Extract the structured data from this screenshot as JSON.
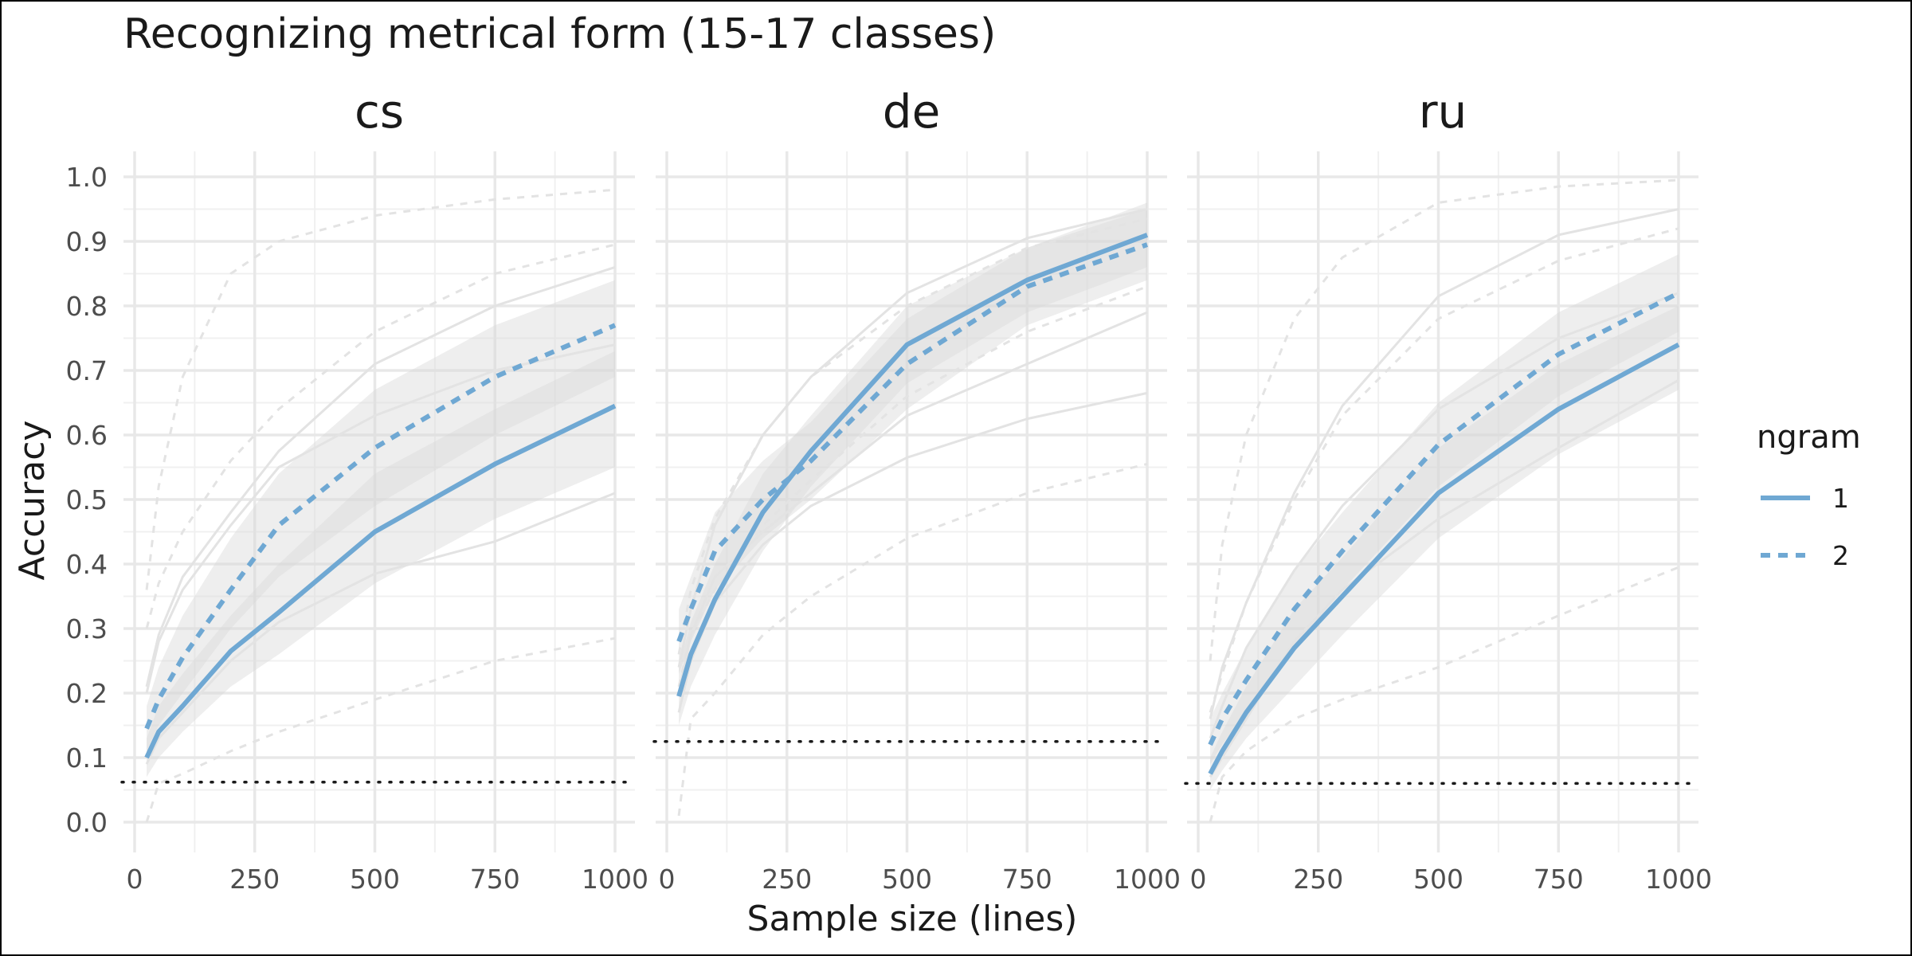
{
  "chart_data": {
    "type": "line",
    "title": "Recognizing metrical form (15-17 classes)",
    "xlabel": "Sample size (lines)",
    "ylabel": "Accuracy",
    "xlim": [
      0,
      1000
    ],
    "ylim": [
      0,
      1
    ],
    "x_ticks": [
      "0",
      "250",
      "500",
      "750",
      "1000"
    ],
    "y_ticks": [
      "0.0",
      "0.1",
      "0.2",
      "0.3",
      "0.4",
      "0.5",
      "0.6",
      "0.7",
      "0.8",
      "0.9",
      "1.0"
    ],
    "grid": true,
    "colors": {
      "highlight": "#6fa8d3",
      "background_lines": "#e3e3e3",
      "ribbon": "#ebebeb",
      "baseline": "#1a1a1a"
    },
    "legend": {
      "title": "ngram",
      "position": "right",
      "entries": [
        {
          "label": "1",
          "style": "solid"
        },
        {
          "label": "2",
          "style": "dashed"
        }
      ]
    },
    "x": [
      25,
      50,
      100,
      200,
      300,
      500,
      750,
      1000
    ],
    "panels": [
      {
        "name": "cs",
        "chance_level": 0.062,
        "series": [
          {
            "ngram": "1",
            "values": [
              0.1,
              0.14,
              0.18,
              0.265,
              0.325,
              0.45,
              0.555,
              0.645
            ]
          },
          {
            "ngram": "2",
            "values": [
              0.145,
              0.19,
              0.255,
              0.36,
              0.46,
              0.58,
              0.69,
              0.77
            ]
          }
        ],
        "ribbons": [
          {
            "ngram": "1",
            "lower": [
              0.07,
              0.1,
              0.14,
              0.21,
              0.26,
              0.37,
              0.47,
              0.55
            ],
            "upper": [
              0.13,
              0.18,
              0.23,
              0.32,
              0.4,
              0.54,
              0.64,
              0.73
            ]
          },
          {
            "ngram": "2",
            "lower": [
              0.11,
              0.15,
              0.2,
              0.3,
              0.38,
              0.49,
              0.6,
              0.69
            ],
            "upper": [
              0.18,
              0.24,
              0.32,
              0.44,
              0.54,
              0.67,
              0.77,
              0.84
            ]
          }
        ],
        "background_lines": [
          {
            "style": "solid",
            "values": [
              0.21,
              0.29,
              0.38,
              0.48,
              0.575,
              0.71,
              0.8,
              0.86
            ]
          },
          {
            "style": "solid",
            "values": [
              0.2,
              0.28,
              0.36,
              0.46,
              0.55,
              0.63,
              0.7,
              0.74
            ]
          },
          {
            "style": "solid",
            "values": [
              0.09,
              0.13,
              0.17,
              0.25,
              0.31,
              0.385,
              0.435,
              0.51
            ]
          },
          {
            "style": "dashed",
            "values": [
              0.36,
              0.52,
              0.69,
              0.85,
              0.9,
              0.94,
              0.965,
              0.98
            ]
          },
          {
            "style": "dashed",
            "values": [
              0.3,
              0.37,
              0.45,
              0.56,
              0.64,
              0.76,
              0.85,
              0.895
            ]
          },
          {
            "style": "dashed",
            "values": [
              0.0,
              0.06,
              0.075,
              0.11,
              0.14,
              0.19,
              0.25,
              0.285
            ]
          }
        ]
      },
      {
        "name": "de",
        "chance_level": 0.125,
        "series": [
          {
            "ngram": "1",
            "values": [
              0.195,
              0.26,
              0.345,
              0.48,
              0.575,
              0.74,
              0.84,
              0.91
            ]
          },
          {
            "ngram": "2",
            "values": [
              0.28,
              0.33,
              0.42,
              0.5,
              0.56,
              0.71,
              0.83,
              0.895
            ]
          }
        ],
        "ribbons": [
          {
            "ngram": "1",
            "lower": [
              0.15,
              0.21,
              0.29,
              0.42,
              0.52,
              0.68,
              0.79,
              0.86
            ],
            "upper": [
              0.24,
              0.31,
              0.4,
              0.54,
              0.63,
              0.8,
              0.89,
              0.96
            ]
          },
          {
            "ngram": "2",
            "lower": [
              0.23,
              0.28,
              0.36,
              0.44,
              0.5,
              0.64,
              0.77,
              0.84
            ],
            "upper": [
              0.33,
              0.38,
              0.48,
              0.56,
              0.62,
              0.78,
              0.89,
              0.95
            ]
          }
        ],
        "background_lines": [
          {
            "style": "solid",
            "values": [
              0.24,
              0.33,
              0.46,
              0.6,
              0.69,
              0.82,
              0.905,
              0.95
            ]
          },
          {
            "style": "solid",
            "values": [
              0.2,
              0.29,
              0.38,
              0.45,
              0.51,
              0.63,
              0.71,
              0.79
            ]
          },
          {
            "style": "solid",
            "values": [
              0.17,
              0.25,
              0.34,
              0.43,
              0.49,
              0.565,
              0.625,
              0.665
            ]
          },
          {
            "style": "dashed",
            "values": [
              0.26,
              0.36,
              0.47,
              0.6,
              0.69,
              0.8,
              0.89,
              0.935
            ]
          },
          {
            "style": "dashed",
            "values": [
              0.21,
              0.29,
              0.36,
              0.46,
              0.53,
              0.66,
              0.76,
              0.83
            ]
          },
          {
            "style": "dashed",
            "values": [
              0.01,
              0.16,
              0.2,
              0.29,
              0.35,
              0.44,
              0.51,
              0.555
            ]
          }
        ]
      },
      {
        "name": "ru",
        "chance_level": 0.06,
        "series": [
          {
            "ngram": "1",
            "values": [
              0.075,
              0.11,
              0.17,
              0.27,
              0.35,
              0.51,
              0.64,
              0.74
            ]
          },
          {
            "ngram": "2",
            "values": [
              0.12,
              0.16,
              0.22,
              0.33,
              0.42,
              0.585,
              0.725,
              0.82
            ]
          }
        ],
        "ribbons": [
          {
            "ngram": "1",
            "lower": [
              0.05,
              0.08,
              0.13,
              0.21,
              0.29,
              0.44,
              0.57,
              0.67
            ],
            "upper": [
              0.1,
              0.14,
              0.21,
              0.33,
              0.41,
              0.58,
              0.71,
              0.8
            ]
          },
          {
            "ngram": "2",
            "lower": [
              0.09,
              0.12,
              0.17,
              0.27,
              0.36,
              0.52,
              0.66,
              0.76
            ],
            "upper": [
              0.16,
              0.2,
              0.27,
              0.39,
              0.48,
              0.65,
              0.79,
              0.88
            ]
          }
        ],
        "background_lines": [
          {
            "style": "solid",
            "values": [
              0.16,
              0.24,
              0.34,
              0.51,
              0.645,
              0.815,
              0.91,
              0.95
            ]
          },
          {
            "style": "solid",
            "values": [
              0.13,
              0.18,
              0.27,
              0.39,
              0.49,
              0.64,
              0.75,
              0.82
            ]
          },
          {
            "style": "solid",
            "values": [
              0.07,
              0.1,
              0.16,
              0.28,
              0.36,
              0.47,
              0.58,
              0.685
            ]
          },
          {
            "style": "dashed",
            "values": [
              0.25,
              0.43,
              0.6,
              0.78,
              0.875,
              0.96,
              0.985,
              0.995
            ]
          },
          {
            "style": "dashed",
            "values": [
              0.17,
              0.23,
              0.34,
              0.5,
              0.63,
              0.78,
              0.87,
              0.92
            ]
          },
          {
            "style": "dashed",
            "values": [
              0.0,
              0.07,
              0.11,
              0.16,
              0.19,
              0.24,
              0.32,
              0.395
            ]
          }
        ]
      }
    ]
  }
}
